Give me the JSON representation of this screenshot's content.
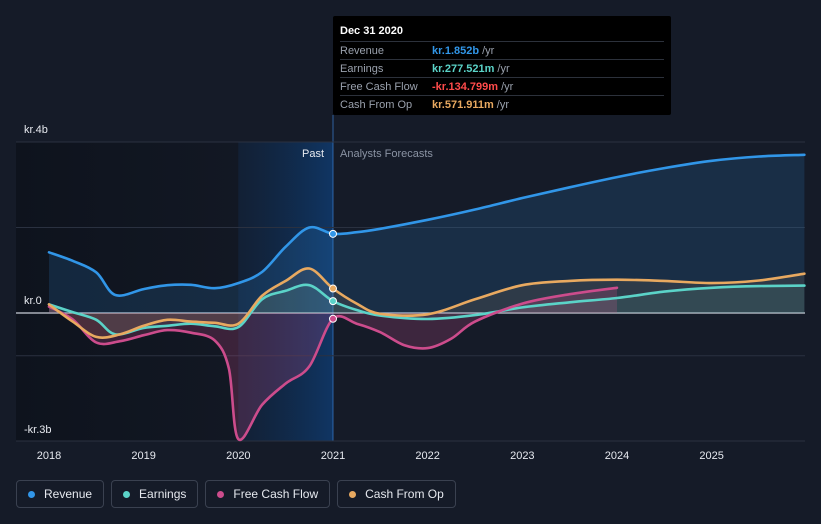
{
  "chart_data": {
    "type": "line",
    "y_axis": {
      "top_label": "kr.4b",
      "zero_label": "kr.0",
      "bottom_label": "-kr.3b",
      "ylim": [
        -3.0,
        4.0
      ]
    },
    "x_ticks": [
      "2018",
      "2019",
      "2020",
      "2021",
      "2022",
      "2023",
      "2024",
      "2025"
    ],
    "xlim": [
      2017.7,
      2025.98
    ],
    "regions": {
      "past_label": "Past",
      "forecast_label": "Analysts Forecasts",
      "divider_x": 2021.0,
      "highlight_start": 2020.0
    },
    "series": [
      {
        "name": "Revenue",
        "color": "#3196e8",
        "points": [
          [
            2018.0,
            1.42
          ],
          [
            2018.25,
            1.22
          ],
          [
            2018.5,
            0.95
          ],
          [
            2018.7,
            0.42
          ],
          [
            2019.0,
            0.56
          ],
          [
            2019.25,
            0.65
          ],
          [
            2019.5,
            0.66
          ],
          [
            2019.75,
            0.58
          ],
          [
            2020.0,
            0.7
          ],
          [
            2020.25,
            0.96
          ],
          [
            2020.5,
            1.55
          ],
          [
            2020.75,
            2.0
          ],
          [
            2021.0,
            1.852
          ],
          [
            2021.25,
            1.89
          ],
          [
            2021.5,
            1.97
          ],
          [
            2022.0,
            2.18
          ],
          [
            2022.5,
            2.42
          ],
          [
            2023.0,
            2.69
          ],
          [
            2023.5,
            2.94
          ],
          [
            2024.0,
            3.18
          ],
          [
            2024.5,
            3.39
          ],
          [
            2025.0,
            3.56
          ],
          [
            2025.5,
            3.66
          ],
          [
            2025.98,
            3.7
          ]
        ]
      },
      {
        "name": "Earnings",
        "color": "#5bd3c8",
        "points": [
          [
            2018.0,
            0.2
          ],
          [
            2018.25,
            0.02
          ],
          [
            2018.5,
            -0.16
          ],
          [
            2018.7,
            -0.5
          ],
          [
            2019.0,
            -0.35
          ],
          [
            2019.25,
            -0.3
          ],
          [
            2019.5,
            -0.25
          ],
          [
            2019.75,
            -0.31
          ],
          [
            2020.0,
            -0.33
          ],
          [
            2020.25,
            0.32
          ],
          [
            2020.5,
            0.52
          ],
          [
            2020.75,
            0.65
          ],
          [
            2021.0,
            0.278
          ],
          [
            2021.25,
            0.07
          ],
          [
            2021.5,
            -0.06
          ],
          [
            2022.0,
            -0.14
          ],
          [
            2022.5,
            -0.05
          ],
          [
            2023.0,
            0.13
          ],
          [
            2023.5,
            0.25
          ],
          [
            2024.0,
            0.35
          ],
          [
            2024.5,
            0.5
          ],
          [
            2025.0,
            0.59
          ],
          [
            2025.5,
            0.63
          ],
          [
            2025.98,
            0.64
          ]
        ]
      },
      {
        "name": "Free Cash Flow",
        "color": "#cc4c8c",
        "points": [
          [
            2018.0,
            0.15
          ],
          [
            2018.25,
            -0.15
          ],
          [
            2018.5,
            -0.69
          ],
          [
            2018.75,
            -0.66
          ],
          [
            2019.0,
            -0.52
          ],
          [
            2019.25,
            -0.4
          ],
          [
            2019.5,
            -0.46
          ],
          [
            2019.75,
            -0.64
          ],
          [
            2019.9,
            -1.3
          ],
          [
            2020.0,
            -2.95
          ],
          [
            2020.25,
            -2.15
          ],
          [
            2020.5,
            -1.65
          ],
          [
            2020.75,
            -1.25
          ],
          [
            2021.0,
            -0.135
          ],
          [
            2021.25,
            -0.25
          ],
          [
            2021.5,
            -0.45
          ],
          [
            2021.75,
            -0.75
          ],
          [
            2022.0,
            -0.82
          ],
          [
            2022.25,
            -0.6
          ],
          [
            2022.5,
            -0.2
          ],
          [
            2023.0,
            0.22
          ],
          [
            2023.5,
            0.44
          ],
          [
            2024.0,
            0.59
          ]
        ]
      },
      {
        "name": "Cash From Op",
        "color": "#e8a960",
        "points": [
          [
            2018.0,
            0.2
          ],
          [
            2018.25,
            -0.2
          ],
          [
            2018.5,
            -0.56
          ],
          [
            2018.75,
            -0.5
          ],
          [
            2019.0,
            -0.3
          ],
          [
            2019.25,
            -0.16
          ],
          [
            2019.5,
            -0.2
          ],
          [
            2019.75,
            -0.23
          ],
          [
            2020.0,
            -0.25
          ],
          [
            2020.25,
            0.4
          ],
          [
            2020.5,
            0.75
          ],
          [
            2020.75,
            1.04
          ],
          [
            2021.0,
            0.572
          ],
          [
            2021.25,
            0.22
          ],
          [
            2021.5,
            -0.02
          ],
          [
            2022.0,
            -0.03
          ],
          [
            2022.5,
            0.32
          ],
          [
            2023.0,
            0.65
          ],
          [
            2023.5,
            0.75
          ],
          [
            2024.0,
            0.78
          ],
          [
            2024.5,
            0.75
          ],
          [
            2025.0,
            0.7
          ],
          [
            2025.5,
            0.76
          ],
          [
            2025.98,
            0.92
          ]
        ]
      }
    ],
    "highlight_x": 2021.0
  },
  "tooltip": {
    "date": "Dec 31 2020",
    "rows": [
      {
        "label": "Revenue",
        "value": "kr.1.852b",
        "unit": "/yr",
        "color": "#3196e8"
      },
      {
        "label": "Earnings",
        "value": "kr.277.521m",
        "unit": "/yr",
        "color": "#5bd3c8"
      },
      {
        "label": "Free Cash Flow",
        "value": "-kr.134.799m",
        "unit": "/yr",
        "color": "#ff4b4b"
      },
      {
        "label": "Cash From Op",
        "value": "kr.571.911m",
        "unit": "/yr",
        "color": "#e8a960"
      }
    ]
  },
  "legend": [
    {
      "label": "Revenue",
      "color": "#3196e8"
    },
    {
      "label": "Earnings",
      "color": "#5bd3c8"
    },
    {
      "label": "Free Cash Flow",
      "color": "#cc4c8c"
    },
    {
      "label": "Cash From Op",
      "color": "#e8a960"
    }
  ]
}
